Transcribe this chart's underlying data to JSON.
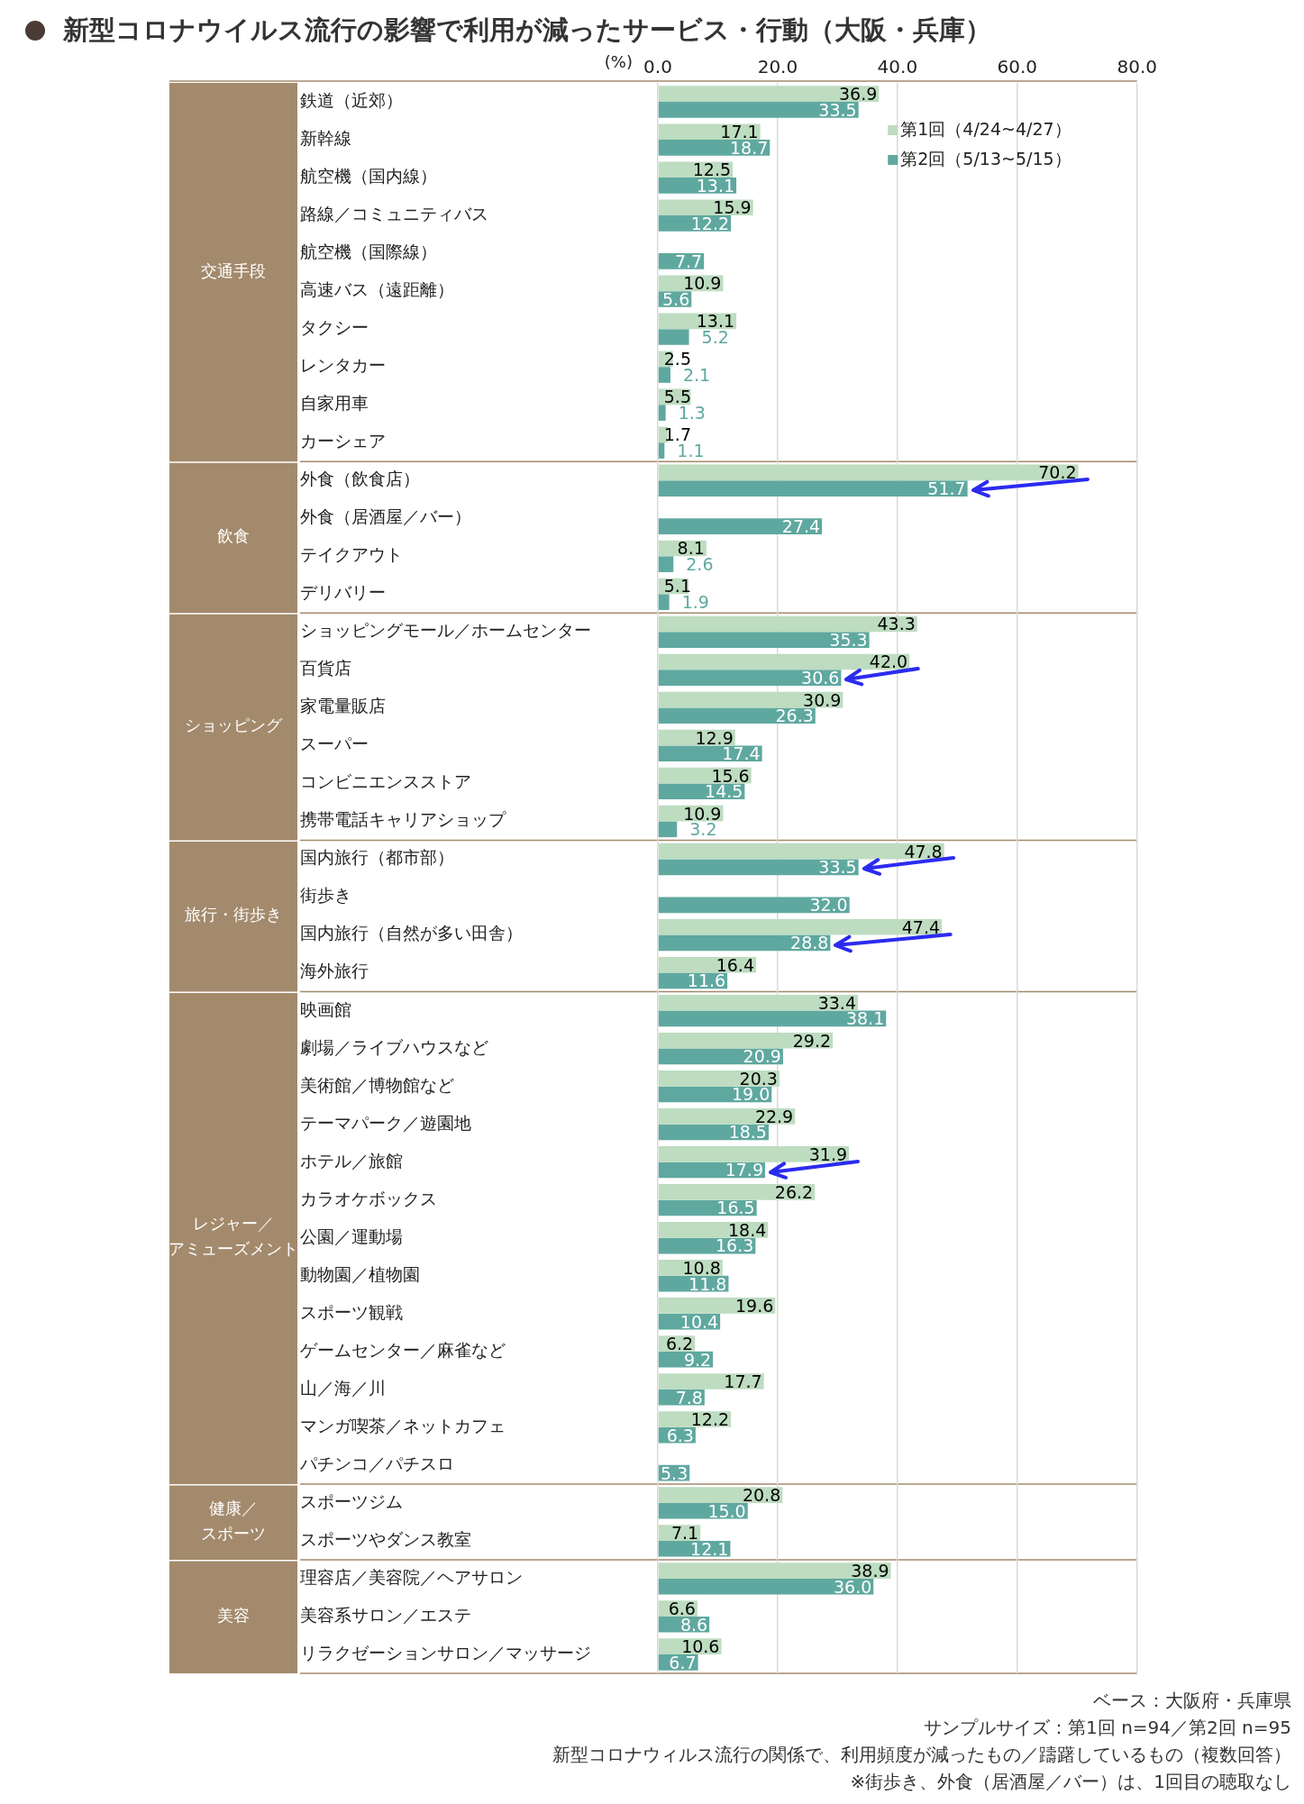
{
  "chart_data": {
    "type": "bar",
    "orientation": "horizontal",
    "title": "新型コロナウイルス流行の影響で利用が減ったサービス・行動（大阪・兵庫）",
    "xlabel": "(%)",
    "categories": [
      "鉄道（近郊）",
      "新幹線",
      "航空機（国内線）",
      "路線／コミュニティバス",
      "航空機（国際線）",
      "高速バス（遠距離）",
      "タクシー",
      "レンタカー",
      "自家用車",
      "カーシェア",
      "外食（飲食店）",
      "外食（居酒屋／バー）",
      "テイクアウト",
      "デリバリー",
      "ショッピングモール／ホームセンター",
      "百貨店",
      "家電量販店",
      "スーパー",
      "コンビニエンスストア",
      "携帯電話キャリアショップ",
      "国内旅行（都市部）",
      "街歩き",
      "国内旅行（自然が多い田舎）",
      "海外旅行",
      "映画館",
      "劇場／ライブハウスなど",
      "美術館／博物館など",
      "テーマパーク／遊園地",
      "ホテル／旅館",
      "カラオケボックス",
      "公園／運動場",
      "動物園／植物園",
      "スポーツ観戦",
      "ゲームセンター／麻雀など",
      "山／海／川",
      "マンガ喫茶／ネットカフェ",
      "パチンコ／パチスロ",
      "スポーツジム",
      "スポーツやダンス教室",
      "理容店／美容院／ヘアサロン",
      "美容系サロン／エステ",
      "リラクゼーションサロン／マッサージ"
    ],
    "series": [
      {
        "name": "第1回（4/24~4/27）",
        "color": "#bddcc0",
        "values": [
          36.9,
          17.1,
          12.5,
          15.9,
          null,
          10.9,
          13.1,
          2.5,
          5.5,
          1.7,
          70.2,
          null,
          8.1,
          5.1,
          43.3,
          42.0,
          30.9,
          12.9,
          15.6,
          10.9,
          47.8,
          null,
          47.4,
          16.4,
          33.4,
          29.2,
          20.3,
          22.9,
          31.9,
          26.2,
          18.4,
          10.8,
          19.6,
          6.2,
          17.7,
          12.2,
          null,
          20.8,
          7.1,
          38.9,
          6.6,
          10.6
        ],
        "value_labels": [
          "36.9",
          "17.1",
          "12.5",
          "15.9",
          null,
          "10.9",
          "13.1",
          "2.5",
          "5.5",
          "1.7",
          "70.2",
          null,
          "8.1",
          "5.1",
          "43.3",
          "42.0",
          "30.9",
          "12.9",
          "15.6",
          "10.9",
          "47.8",
          null,
          "47.4",
          "16.4",
          "33.4",
          "29.2",
          "20.3",
          "22.9",
          "31.9",
          "26.2",
          "18.4",
          "10.8",
          "19.6",
          "6.2",
          "17.7",
          "12.2",
          null,
          "20.8",
          "7.1",
          "38.9",
          "6.6",
          "10.6"
        ]
      },
      {
        "name": "第2回（5/13~5/15）",
        "color": "#5fa8a0",
        "values": [
          33.5,
          18.7,
          13.1,
          12.2,
          7.7,
          5.6,
          5.2,
          2.1,
          1.3,
          1.1,
          51.7,
          27.4,
          2.6,
          1.9,
          35.3,
          30.6,
          26.3,
          17.4,
          14.5,
          3.2,
          33.5,
          32.0,
          28.8,
          11.6,
          38.1,
          20.9,
          19.0,
          18.5,
          17.9,
          16.5,
          16.3,
          11.8,
          10.4,
          9.2,
          7.8,
          6.3,
          5.3,
          15.0,
          12.1,
          36.0,
          8.6,
          6.7
        ],
        "value_labels": [
          "33.5",
          "18.7",
          "13.1",
          "12.2",
          "7.7",
          "5.6",
          "5.2",
          "2.1",
          "1.3",
          "1.1",
          "51.7",
          "27.4",
          "2.6",
          "1.9",
          "35.3",
          "30.6",
          "26.3",
          "17.4",
          "14.5",
          "3.2",
          "33.5",
          "32.0",
          "28.8",
          "11.6",
          "38.1",
          "20.9",
          "19.0",
          "18.5",
          "17.9",
          "16.5",
          "16.3",
          "11.8",
          "10.4",
          "9.2",
          "7.8",
          "6.3",
          "5.3",
          "15.0",
          "12.1",
          "36.0",
          "8.6",
          "6.7"
        ]
      }
    ],
    "xlim": [
      0,
      80
    ],
    "xticks": [
      {
        "value": 0,
        "label": "0.0"
      },
      {
        "value": 20,
        "label": "20.0"
      },
      {
        "value": 40,
        "label": "40.0"
      },
      {
        "value": 60,
        "label": "60.0"
      },
      {
        "value": 80,
        "label": "80.0"
      }
    ],
    "grid": "x",
    "legend": "top right",
    "annotations": [
      "交通手段",
      "飲食",
      "ショッピング",
      "旅行・街歩き",
      "レジャー／アミューズメント",
      "健康／スポーツ",
      "美容",
      "ベース：大阪府・兵庫県",
      "サンプルサイズ：第1回 n=94／第2回 n=95",
      "新型コロナウィルス流行の関係で、利用頻度が減ったもの／躊躇しているもの（複数回答）",
      "※街歩き、外食（居酒屋／バー）は、1回目の聴取なし"
    ]
  }
}
